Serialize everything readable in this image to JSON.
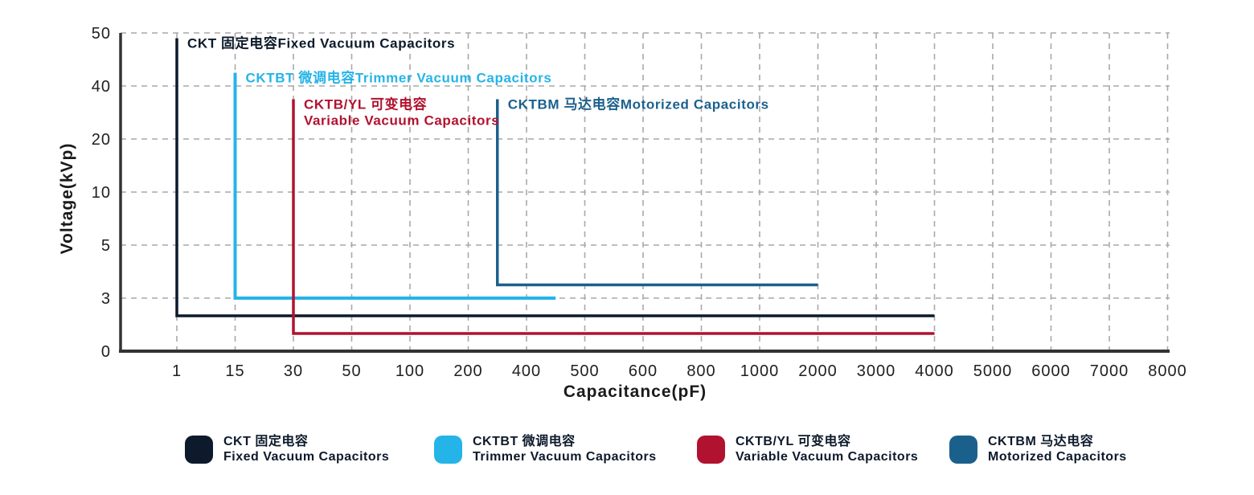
{
  "chart_data": {
    "type": "line",
    "title": "",
    "xlabel": "Capacitance(pF)",
    "ylabel": "Voltage(kVp)",
    "x_ticks": [
      1,
      15,
      30,
      50,
      100,
      200,
      400,
      500,
      600,
      800,
      1000,
      2000,
      3000,
      4000,
      5000,
      6000,
      7000,
      8000
    ],
    "y_ticks": [
      0,
      3,
      5,
      10,
      20,
      40,
      50
    ],
    "x_scale": "categorical-even-spacing",
    "y_scale": "categorical-even-spacing",
    "grid": "dashed",
    "legend_position": "bottom",
    "series": [
      {
        "id": "ckt",
        "label_cn": "CKT 固定电容",
        "label_en": "Fixed Vacuum Capacitors",
        "color": "#0d1a2b",
        "capacitance_pf": [
          1,
          4000
        ],
        "voltage_kvp": [
          2,
          49
        ],
        "annotation": [
          "CKT 固定电容Fixed Vacuum Capacitors"
        ]
      },
      {
        "id": "cktbt",
        "label_cn": "CKTBT 微调电容",
        "label_en": "Trimmer Vacuum Capacitors",
        "color": "#25b4e8",
        "capacitance_pf": [
          15,
          450
        ],
        "voltage_kvp": [
          3,
          42.5
        ],
        "annotation": [
          "CKTBT 微调电容Trimmer Vacuum Capacitors"
        ]
      },
      {
        "id": "cktb-yl",
        "label_cn": "CKTB/YL 可变电容",
        "label_en": "Variable Vacuum Capacitors",
        "color": "#b1122f",
        "capacitance_pf": [
          30,
          4000
        ],
        "voltage_kvp": [
          1,
          35
        ],
        "annotation": [
          "CKTB/YL 可变电容",
          "Variable Vacuum Capacitors"
        ]
      },
      {
        "id": "cktbm",
        "label_cn": "CKTBM 马达电容",
        "label_en": "Motorized Capacitors",
        "color": "#1b608d",
        "capacitance_pf": [
          300,
          2000
        ],
        "voltage_kvp": [
          3.5,
          35
        ],
        "annotation": [
          "CKTBM 马达电容Motorized Capacitors"
        ]
      }
    ]
  },
  "colors": {
    "grid": "#a9a9a9",
    "axis": "#333333",
    "text": "#1f1f1f"
  }
}
